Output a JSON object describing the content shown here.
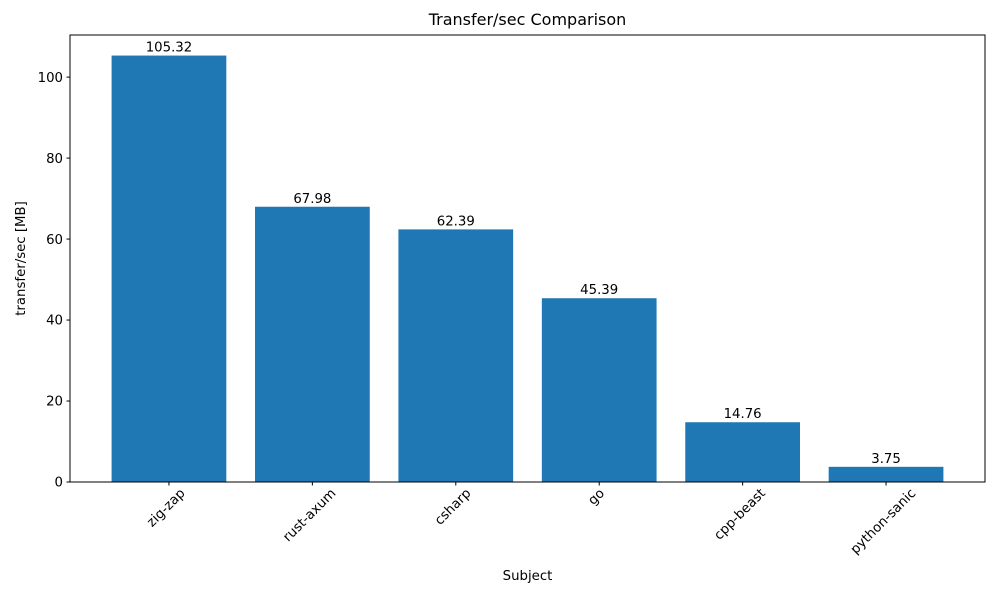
{
  "figure": {
    "background": "#ffffff"
  },
  "chart_data": {
    "type": "bar",
    "title": "Transfer/sec Comparison",
    "xlabel": "Subject",
    "ylabel": "transfer/sec [MB]",
    "categories": [
      "zig-zap",
      "rust-axum",
      "csharp",
      "go",
      "cpp-beast",
      "python-sanic"
    ],
    "values": [
      105.32,
      67.98,
      62.39,
      45.39,
      14.76,
      3.75
    ],
    "bar_value_labels": [
      "105.32",
      "67.98",
      "62.39",
      "45.39",
      "14.76",
      "3.75"
    ],
    "yticks": [
      0,
      20,
      40,
      60,
      80,
      100
    ],
    "ylim": [
      0,
      110.4
    ],
    "xtick_rotation_deg": 45,
    "grid": false,
    "legend": "none",
    "bar_color": "#1f77b4",
    "axis_color": "#000000",
    "text_color": "#000000"
  }
}
